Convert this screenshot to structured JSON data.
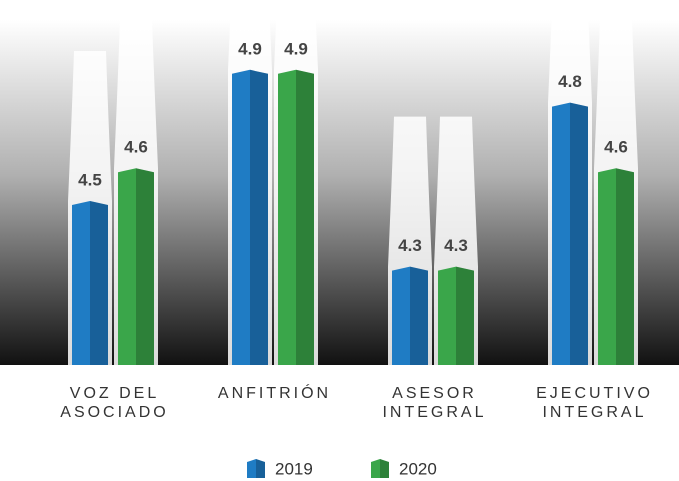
{
  "chart_data": {
    "type": "bar",
    "categories": [
      "VOZ DEL\nASOCIADO",
      "ANFITRIÓN",
      "ASESOR\nINTEGRAL",
      "EJECUTIVO\nINTEGRAL"
    ],
    "series": [
      {
        "name": "2019",
        "color": "#1f7cc4",
        "values": [
          4.5,
          4.9,
          4.3,
          4.8
        ]
      },
      {
        "name": "2020",
        "color": "#3aa64a",
        "values": [
          4.6,
          4.9,
          4.3,
          4.6
        ]
      }
    ],
    "ylim": [
      4,
      5
    ]
  }
}
